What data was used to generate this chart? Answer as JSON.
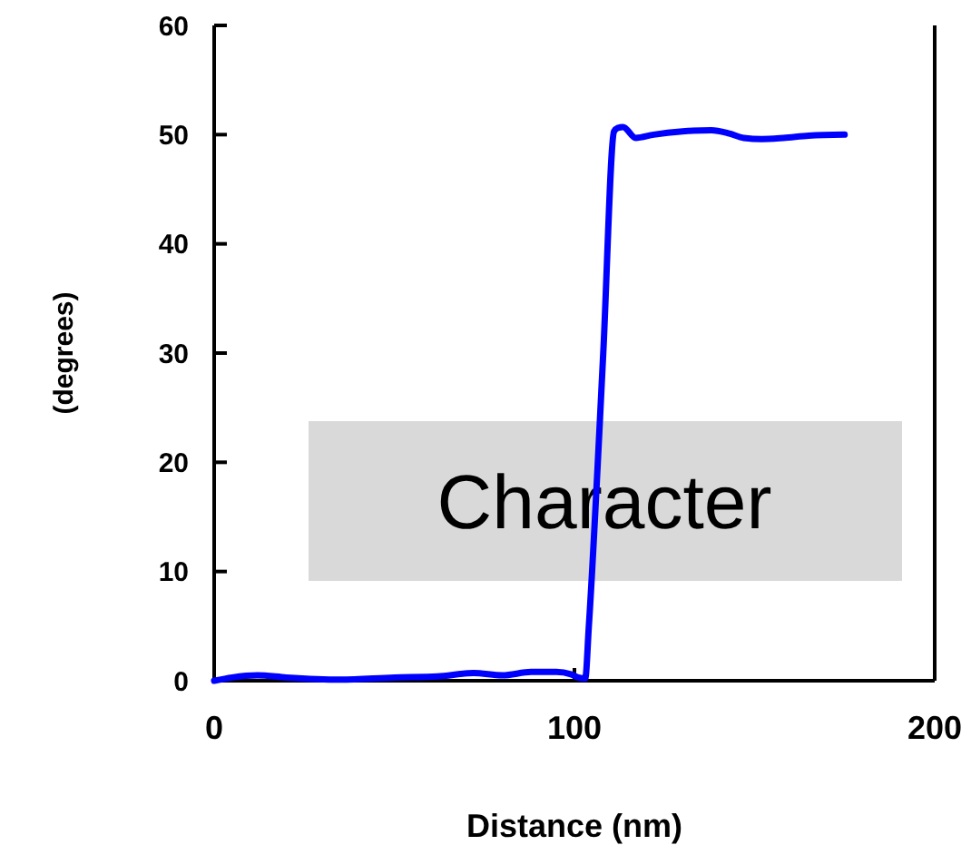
{
  "chart_data": {
    "type": "line",
    "xlabel": "Distance (nm)",
    "ylabel": "(degrees)",
    "xlim": [
      0,
      200
    ],
    "ylim": [
      0,
      60
    ],
    "xticks": [
      0,
      100,
      200
    ],
    "yticks": [
      0,
      10,
      20,
      30,
      40,
      50,
      60
    ],
    "grid": false,
    "marker": "none",
    "line_style": "solid",
    "annotations": [
      "Character"
    ],
    "series": [
      {
        "color": "#0000ff",
        "x": [
          0,
          5,
          12,
          20,
          35,
          50,
          62,
          72,
          80,
          88,
          95,
          99,
          101,
          103,
          104,
          108,
          111,
          112,
          113.5,
          117,
          122,
          130,
          138,
          143,
          147,
          152,
          158,
          165,
          175
        ],
        "values": [
          0,
          0.3,
          0.5,
          0.3,
          0.1,
          0.3,
          0.4,
          0.7,
          0.5,
          0.8,
          0.8,
          0.6,
          0.3,
          0.2,
          5,
          30,
          50.3,
          50.6,
          50.7,
          49.7,
          50,
          50.3,
          50.4,
          50.1,
          49.7,
          49.6,
          49.7,
          49.9,
          50
        ]
      }
    ]
  }
}
